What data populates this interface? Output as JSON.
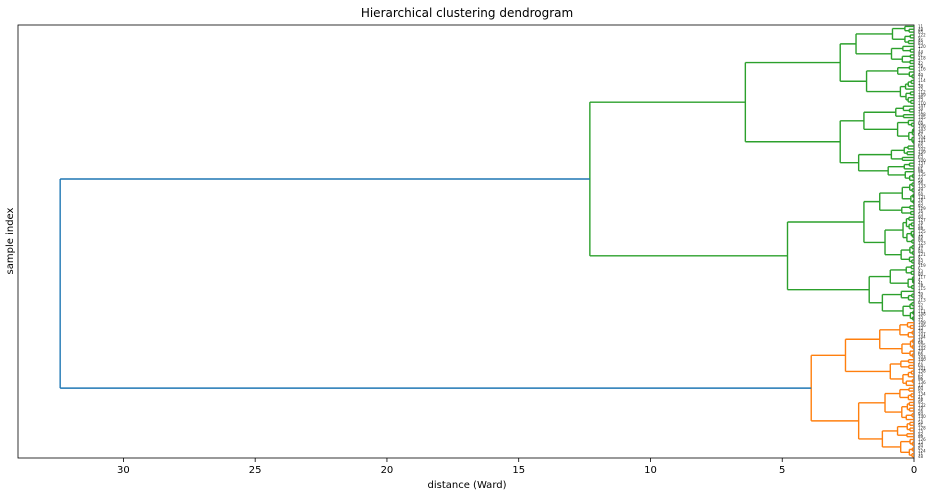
{
  "chart_data": {
    "type": "dendrogram",
    "orientation": "left",
    "title": "Hierarchical clustering dendrogram",
    "xlabel": "distance (Ward)",
    "ylabel": "sample index",
    "xlim": [
      34,
      0
    ],
    "xticks": [
      30,
      25,
      20,
      15,
      10,
      5,
      0
    ],
    "xtick_labels": [
      "30",
      "25",
      "20",
      "15",
      "10",
      "5",
      "0"
    ],
    "grid": false,
    "colors": {
      "root": "#1f77b4",
      "cluster_a": "#2ca02c",
      "cluster_b": "#ff7f0e"
    },
    "merges": [
      {
        "name": "root",
        "distance": 32.4,
        "color": "#1f77b4"
      },
      {
        "name": "cluster-green",
        "distance": 12.3,
        "color": "#2ca02c"
      },
      {
        "name": "green-upper",
        "distance": 6.4,
        "color": "#2ca02c"
      },
      {
        "name": "green-lower",
        "distance": 4.8,
        "color": "#2ca02c"
      },
      {
        "name": "cluster-orange",
        "distance": 3.9,
        "color": "#ff7f0e"
      }
    ]
  }
}
